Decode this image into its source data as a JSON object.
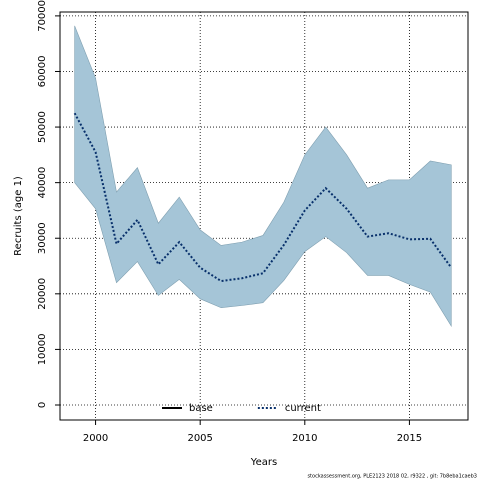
{
  "chart_data": {
    "type": "line",
    "x_label": "Years",
    "y_label": "Recruits (age 1)",
    "footer": "stockassessment.org, PLE2123 2018 02, r9322 , git: 7b8eba1caeb3",
    "x": [
      1999,
      2000,
      2001,
      2002,
      2003,
      2004,
      2005,
      2006,
      2007,
      2008,
      2009,
      2010,
      2011,
      2012,
      2013,
      2014,
      2015,
      2016,
      2017
    ],
    "series": [
      {
        "name": "base",
        "color": "#000000",
        "dash": "solid"
      },
      {
        "name": "current",
        "color": "#08306b",
        "dash": "dotted",
        "values": [
          52500,
          45500,
          29000,
          33300,
          25300,
          29300,
          24700,
          22300,
          22800,
          23700,
          28800,
          35000,
          39000,
          35300,
          30300,
          30900,
          29800,
          29900,
          24700
        ],
        "upper": [
          68200,
          58800,
          38300,
          42700,
          32700,
          37400,
          31500,
          28700,
          29300,
          30500,
          36500,
          45000,
          50000,
          45000,
          39000,
          40500,
          40500,
          43900,
          43200
        ],
        "lower": [
          40000,
          35300,
          22000,
          25800,
          19700,
          22600,
          19100,
          17500,
          17900,
          18400,
          22400,
          27600,
          30300,
          27400,
          23300,
          23300,
          21700,
          20300,
          14200
        ],
        "band_color": "#a5c5d7"
      }
    ],
    "xlim": [
      1998.3,
      2017.8
    ],
    "ylim": [
      -2700,
      70700
    ],
    "xticks": [
      2000,
      2005,
      2010,
      2015
    ],
    "yticks": [
      0,
      10000,
      20000,
      30000,
      40000,
      50000,
      60000,
      70000
    ],
    "grid": true,
    "legend": "bottom"
  }
}
